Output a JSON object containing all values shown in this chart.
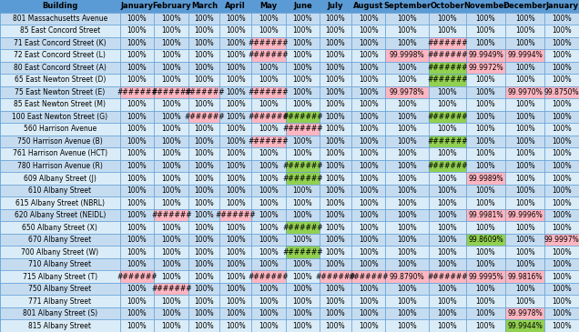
{
  "columns": [
    "Building",
    "January",
    "February",
    "March",
    "April",
    "May",
    "June",
    "July",
    "August",
    "September",
    "October",
    "November",
    "December",
    "January"
  ],
  "rows": [
    {
      "building": "801 Massachusetts Avenue",
      "values": [
        "100%",
        "100%",
        "100%",
        "100%",
        "100%",
        "100%",
        "100%",
        "100%",
        "100%",
        "100%",
        "100%",
        "100%",
        "100%"
      ],
      "colors": [
        "w",
        "w",
        "w",
        "w",
        "w",
        "w",
        "w",
        "w",
        "w",
        "w",
        "w",
        "w",
        "w"
      ]
    },
    {
      "building": "85 East Concord Street",
      "values": [
        "100%",
        "100%",
        "100%",
        "100%",
        "100%",
        "100%",
        "100%",
        "100%",
        "100%",
        "100%",
        "100%",
        "100%",
        "100%"
      ],
      "colors": [
        "w",
        "w",
        "w",
        "w",
        "w",
        "w",
        "w",
        "w",
        "w",
        "w",
        "w",
        "w",
        "w"
      ]
    },
    {
      "building": "71 East Concord Street (K)",
      "values": [
        "100%",
        "100%",
        "100%",
        "100%",
        "#######",
        "100%",
        "100%",
        "100%",
        "100%",
        "#######",
        "100%",
        "100%",
        "100%"
      ],
      "colors": [
        "w",
        "w",
        "w",
        "w",
        "pink",
        "w",
        "w",
        "w",
        "w",
        "pink",
        "w",
        "w",
        "w"
      ]
    },
    {
      "building": "72 East Concord Street (L)",
      "values": [
        "100%",
        "100%",
        "100%",
        "100%",
        "#######",
        "100%",
        "100%",
        "100%",
        "99.9998%",
        "#######",
        "99.9949%",
        "99.9994%",
        "100%"
      ],
      "colors": [
        "w",
        "w",
        "w",
        "w",
        "pink",
        "w",
        "w",
        "w",
        "pink",
        "pink",
        "pink",
        "pink",
        "w"
      ]
    },
    {
      "building": "80 East Concord Street (A)",
      "values": [
        "100%",
        "100%",
        "100%",
        "100%",
        "100%",
        "100%",
        "100%",
        "100%",
        "100%",
        "#######",
        "99.9972%",
        "100%",
        "100%"
      ],
      "colors": [
        "w",
        "w",
        "w",
        "w",
        "w",
        "w",
        "w",
        "w",
        "w",
        "green",
        "pink",
        "w",
        "w"
      ]
    },
    {
      "building": "65 East Newton Street (D)",
      "values": [
        "100%",
        "100%",
        "100%",
        "100%",
        "100%",
        "100%",
        "100%",
        "100%",
        "100%",
        "#######",
        "100%",
        "100%",
        "100%"
      ],
      "colors": [
        "w",
        "w",
        "w",
        "w",
        "w",
        "w",
        "w",
        "w",
        "w",
        "green",
        "w",
        "w",
        "w"
      ]
    },
    {
      "building": "75 East Newton Street (E)",
      "values": [
        "#######",
        "#######",
        "#######",
        "100%",
        "#######",
        "100%",
        "100%",
        "100%",
        "99.9978%",
        "100%",
        "100%",
        "99.9970%",
        "99.8750%"
      ],
      "colors": [
        "pink",
        "pink",
        "pink",
        "w",
        "pink",
        "w",
        "w",
        "w",
        "pink",
        "w",
        "w",
        "pink",
        "pink"
      ]
    },
    {
      "building": "85 East Newton Street (M)",
      "values": [
        "100%",
        "100%",
        "100%",
        "100%",
        "100%",
        "100%",
        "100%",
        "100%",
        "100%",
        "100%",
        "100%",
        "100%",
        "100%"
      ],
      "colors": [
        "w",
        "w",
        "w",
        "w",
        "w",
        "w",
        "w",
        "w",
        "w",
        "w",
        "w",
        "w",
        "w"
      ]
    },
    {
      "building": "100 East Newton Street (G)",
      "values": [
        "100%",
        "100%",
        "#######",
        "100%",
        "#######",
        "#######",
        "100%",
        "100%",
        "100%",
        "#######",
        "100%",
        "100%",
        "100%"
      ],
      "colors": [
        "w",
        "w",
        "pink",
        "w",
        "pink",
        "green",
        "w",
        "w",
        "w",
        "green",
        "w",
        "w",
        "w"
      ]
    },
    {
      "building": "560 Harrison Avenue",
      "values": [
        "100%",
        "100%",
        "100%",
        "100%",
        "100%",
        "#######",
        "100%",
        "100%",
        "100%",
        "100%",
        "100%",
        "100%",
        "100%"
      ],
      "colors": [
        "w",
        "w",
        "w",
        "w",
        "w",
        "pink",
        "w",
        "w",
        "w",
        "w",
        "w",
        "w",
        "w"
      ]
    },
    {
      "building": "750 Harrison Avenue (B)",
      "values": [
        "100%",
        "100%",
        "100%",
        "100%",
        "#######",
        "100%",
        "100%",
        "100%",
        "100%",
        "#######",
        "100%",
        "100%",
        "100%"
      ],
      "colors": [
        "w",
        "w",
        "w",
        "w",
        "pink",
        "w",
        "w",
        "w",
        "w",
        "green",
        "w",
        "w",
        "w"
      ]
    },
    {
      "building": "761 Harrison Avenue (HCT)",
      "values": [
        "100%",
        "100%",
        "100%",
        "100%",
        "100%",
        "100%",
        "100%",
        "100%",
        "100%",
        "100%",
        "100%",
        "100%",
        "100%"
      ],
      "colors": [
        "w",
        "w",
        "w",
        "w",
        "w",
        "w",
        "w",
        "w",
        "w",
        "w",
        "w",
        "w",
        "w"
      ]
    },
    {
      "building": "780 Harrison Avenue (R)",
      "values": [
        "100%",
        "100%",
        "100%",
        "100%",
        "100%",
        "#######",
        "100%",
        "100%",
        "100%",
        "#######",
        "100%",
        "100%",
        "100%"
      ],
      "colors": [
        "w",
        "w",
        "w",
        "w",
        "w",
        "green",
        "w",
        "w",
        "w",
        "green",
        "w",
        "w",
        "w"
      ]
    },
    {
      "building": "609 Albany Street (J)",
      "values": [
        "100%",
        "100%",
        "100%",
        "100%",
        "100%",
        "#######",
        "100%",
        "100%",
        "100%",
        "100%",
        "99.9989%",
        "100%",
        "100%"
      ],
      "colors": [
        "w",
        "w",
        "w",
        "w",
        "w",
        "green",
        "w",
        "w",
        "w",
        "w",
        "pink",
        "w",
        "w"
      ]
    },
    {
      "building": "610 Albany Street",
      "values": [
        "100%",
        "100%",
        "100%",
        "100%",
        "100%",
        "100%",
        "100%",
        "100%",
        "100%",
        "100%",
        "100%",
        "100%",
        "100%"
      ],
      "colors": [
        "w",
        "w",
        "w",
        "w",
        "w",
        "w",
        "w",
        "w",
        "w",
        "w",
        "w",
        "w",
        "w"
      ]
    },
    {
      "building": "615 Albany Street (NBRL)",
      "values": [
        "100%",
        "100%",
        "100%",
        "100%",
        "100%",
        "100%",
        "100%",
        "100%",
        "100%",
        "100%",
        "100%",
        "100%",
        "100%"
      ],
      "colors": [
        "w",
        "w",
        "w",
        "w",
        "w",
        "w",
        "w",
        "w",
        "w",
        "w",
        "w",
        "w",
        "w"
      ]
    },
    {
      "building": "620 Albany Street (NEIDL)",
      "values": [
        "100%",
        "#######",
        "100%",
        "#######",
        "100%",
        "100%",
        "100%",
        "100%",
        "100%",
        "100%",
        "99.9981%",
        "99.9996%",
        "100%"
      ],
      "colors": [
        "w",
        "pink",
        "w",
        "pink",
        "w",
        "w",
        "w",
        "w",
        "w",
        "w",
        "pink",
        "pink",
        "w"
      ]
    },
    {
      "building": "650 Albany Street (X)",
      "values": [
        "100%",
        "100%",
        "100%",
        "100%",
        "100%",
        "#######",
        "100%",
        "100%",
        "100%",
        "100%",
        "100%",
        "100%",
        "100%"
      ],
      "colors": [
        "w",
        "w",
        "w",
        "w",
        "w",
        "green",
        "w",
        "w",
        "w",
        "w",
        "w",
        "w",
        "w"
      ]
    },
    {
      "building": "670 Albany Street",
      "values": [
        "100%",
        "100%",
        "100%",
        "100%",
        "100%",
        "100%",
        "100%",
        "100%",
        "100%",
        "100%",
        "99.8609%",
        "100%",
        "99.9997%"
      ],
      "colors": [
        "w",
        "w",
        "w",
        "w",
        "w",
        "w",
        "w",
        "w",
        "w",
        "w",
        "green",
        "w",
        "pink"
      ]
    },
    {
      "building": "700 Albany Street (W)",
      "values": [
        "100%",
        "100%",
        "100%",
        "100%",
        "100%",
        "#######",
        "100%",
        "100%",
        "100%",
        "100%",
        "100%",
        "100%",
        "100%"
      ],
      "colors": [
        "w",
        "w",
        "w",
        "w",
        "w",
        "green",
        "w",
        "w",
        "w",
        "w",
        "w",
        "w",
        "w"
      ]
    },
    {
      "building": "710 Albany Street",
      "values": [
        "100%",
        "100%",
        "100%",
        "100%",
        "100%",
        "100%",
        "100%",
        "100%",
        "100%",
        "100%",
        "100%",
        "100%",
        "100%"
      ],
      "colors": [
        "w",
        "w",
        "w",
        "w",
        "w",
        "w",
        "w",
        "w",
        "w",
        "w",
        "w",
        "w",
        "w"
      ]
    },
    {
      "building": "715 Albany Street (T)",
      "values": [
        "#######",
        "100%",
        "100%",
        "100%",
        "#######",
        "100%",
        "#######",
        "#######",
        "99.8790%",
        "#######",
        "99.9995%",
        "99.9816%",
        "100%"
      ],
      "colors": [
        "pink",
        "w",
        "w",
        "w",
        "pink",
        "w",
        "pink",
        "pink",
        "pink",
        "pink",
        "pink",
        "pink",
        "w"
      ]
    },
    {
      "building": "750 Albany Street",
      "values": [
        "100%",
        "#######",
        "100%",
        "100%",
        "100%",
        "100%",
        "100%",
        "100%",
        "100%",
        "100%",
        "100%",
        "100%",
        "100%"
      ],
      "colors": [
        "w",
        "pink",
        "w",
        "w",
        "w",
        "w",
        "w",
        "w",
        "w",
        "w",
        "w",
        "w",
        "w"
      ]
    },
    {
      "building": "771 Albany Street",
      "values": [
        "100%",
        "100%",
        "100%",
        "100%",
        "100%",
        "100%",
        "100%",
        "100%",
        "100%",
        "100%",
        "100%",
        "100%",
        "100%"
      ],
      "colors": [
        "w",
        "w",
        "w",
        "w",
        "w",
        "w",
        "w",
        "w",
        "w",
        "w",
        "w",
        "w",
        "w"
      ]
    },
    {
      "building": "801 Albany Street (S)",
      "values": [
        "100%",
        "100%",
        "100%",
        "100%",
        "100%",
        "100%",
        "100%",
        "100%",
        "100%",
        "100%",
        "100%",
        "99.9978%",
        "100%"
      ],
      "colors": [
        "w",
        "w",
        "w",
        "w",
        "w",
        "w",
        "w",
        "w",
        "w",
        "w",
        "w",
        "pink",
        "w"
      ]
    },
    {
      "building": "815 Albany Street",
      "values": [
        "100%",
        "100%",
        "100%",
        "100%",
        "100%",
        "100%",
        "100%",
        "100%",
        "100%",
        "100%",
        "100%",
        "99.9944%",
        "100%"
      ],
      "colors": [
        "w",
        "w",
        "w",
        "w",
        "w",
        "w",
        "w",
        "w",
        "w",
        "w",
        "w",
        "green",
        "w"
      ]
    }
  ],
  "header_bg": "#5B9BD5",
  "pink": "#FFB6C1",
  "green": "#92D050",
  "border_color": "#5B9BD5",
  "row_bg_even": "#C5DCF0",
  "row_bg_odd": "#DAEcF7",
  "font_size": 5.5,
  "header_font_size": 6.0,
  "col_widths_raw": [
    2.5,
    0.72,
    0.72,
    0.65,
    0.65,
    0.72,
    0.72,
    0.65,
    0.72,
    0.9,
    0.78,
    0.82,
    0.82,
    0.72
  ]
}
